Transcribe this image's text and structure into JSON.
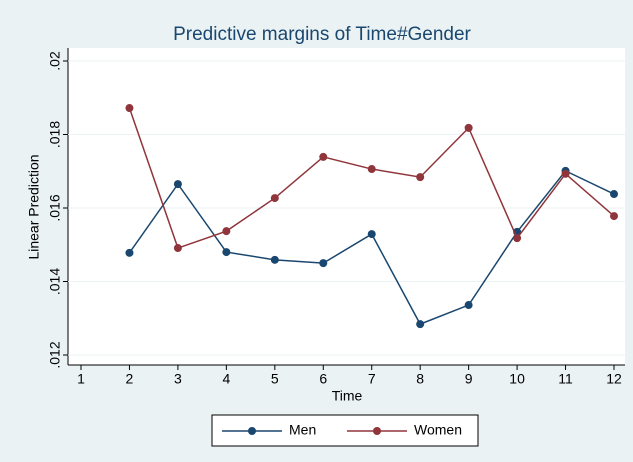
{
  "chart_data": {
    "type": "line",
    "title": "Predictive margins of Time#Gender",
    "x_label": "Time",
    "y_label": "Linear Prediction",
    "x": [
      2,
      3,
      4,
      5,
      6,
      7,
      8,
      9,
      10,
      11,
      12
    ],
    "series": [
      {
        "name": "Men",
        "color": "#1a476f",
        "values": [
          0.01478,
          0.01665,
          0.0148,
          0.01459,
          0.0145,
          0.01529,
          0.01284,
          0.01336,
          0.01535,
          0.01701,
          0.01638
        ]
      },
      {
        "name": "Women",
        "color": "#90353b",
        "values": [
          0.01872,
          0.01491,
          0.01537,
          0.01627,
          0.01739,
          0.01706,
          0.01684,
          0.01818,
          0.01518,
          0.01693,
          0.01578
        ]
      }
    ],
    "xlim": [
      1,
      12
    ],
    "xticks": [
      1,
      2,
      3,
      4,
      5,
      6,
      7,
      8,
      9,
      10,
      11,
      12
    ],
    "ylim": [
      0.012,
      0.02
    ],
    "yticks": [
      {
        "value": 0.012,
        "label": ".012"
      },
      {
        "value": 0.014,
        "label": ".014"
      },
      {
        "value": 0.016,
        "label": ".016"
      },
      {
        "value": 0.018,
        "label": ".018"
      },
      {
        "value": 0.02,
        "label": ".02"
      }
    ],
    "grid": true,
    "legend": "bottom"
  }
}
